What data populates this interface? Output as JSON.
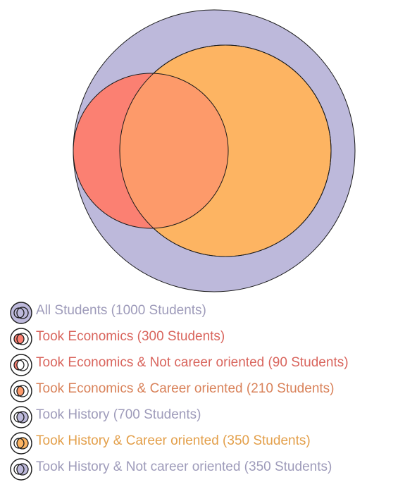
{
  "colors": {
    "all_students": "#bdb9db",
    "economics": "#fb8072",
    "history": "#fdb462",
    "overlap": "#fd9a6a",
    "outline": "#1a1a1a"
  },
  "label_colors": {
    "all_students": "#9e9bba",
    "economics": "#d9655d",
    "history": "#e39f4a",
    "overlap": "#d9825a"
  },
  "sets": {
    "all_students": 1000,
    "took_economics": 300,
    "took_history": 700,
    "economics_not_career": 90,
    "economics_career": 210,
    "history_career": 350,
    "history_not_career": 350
  },
  "legend": [
    {
      "key": "all",
      "label": "All Students (1000 Students)",
      "color_key": "all_students",
      "icon": "venn-all-icon"
    },
    {
      "key": "econ",
      "label": "Took Economics (300 Students)",
      "color_key": "economics",
      "icon": "venn-economics-icon"
    },
    {
      "key": "econ_not_career",
      "label": "Took Economics & Not career oriented (90 Students)",
      "color_key": "economics",
      "icon": "venn-economics-only-icon"
    },
    {
      "key": "econ_career",
      "label": "Took Economics & Career oriented (210 Students)",
      "color_key": "overlap",
      "icon": "venn-overlap-icon"
    },
    {
      "key": "history",
      "label": "Took History (700 Students)",
      "color_key": "all_students",
      "icon": "venn-history-icon"
    },
    {
      "key": "history_career",
      "label": "Took History & Career oriented (350 Students)",
      "color_key": "history",
      "icon": "venn-history-career-icon"
    },
    {
      "key": "history_not_career",
      "label": "Took History & Not career oriented (350 Students)",
      "color_key": "all_students",
      "icon": "venn-history-not-career-icon"
    }
  ]
}
